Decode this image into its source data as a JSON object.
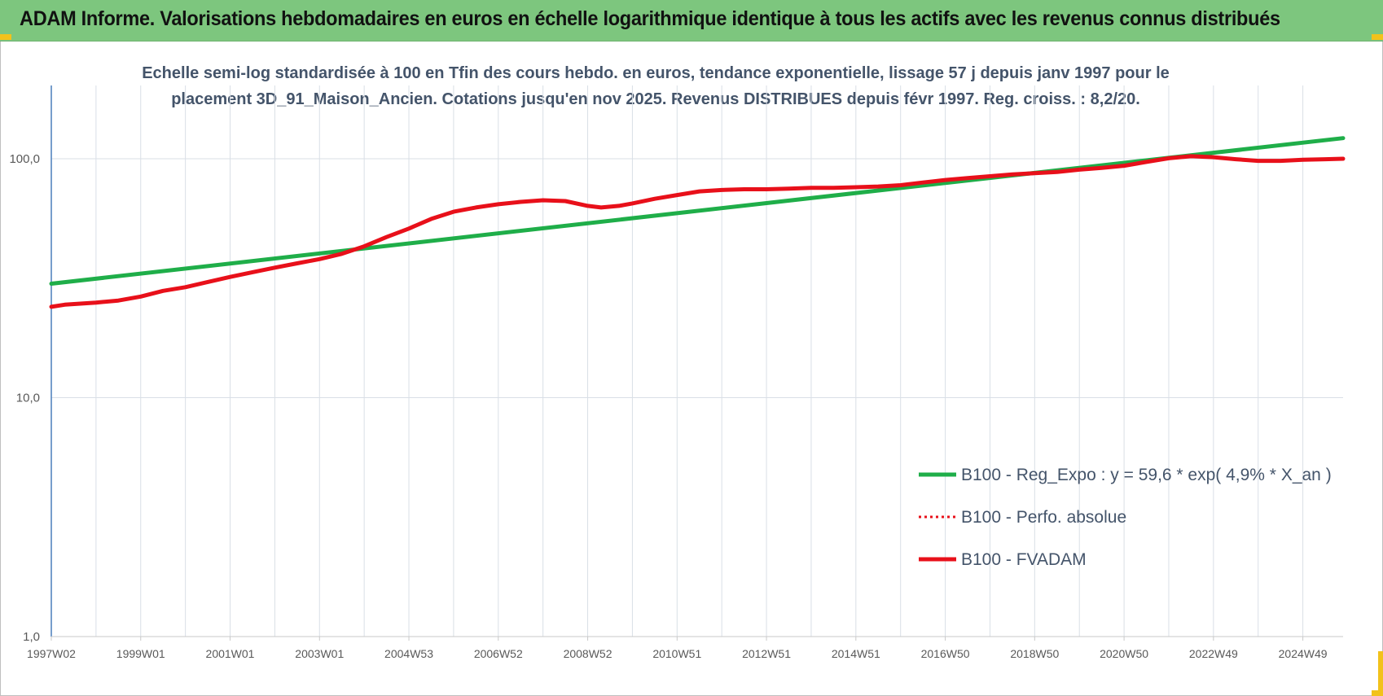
{
  "title": "ADAM Informe. Valorisations hebdomadaires en euros en échelle logarithmique identique à tous les actifs avec les revenus connus distribués",
  "subtitle_line1": "Echelle semi-log standardisée à 100 en Tfin des cours hebdo. en euros, tendance exponentielle, lissage 57 j depuis janv 1997 pour le",
  "subtitle_line2": "placement 3D_91_Maison_Ancien. Cotations jusqu'en nov 2025. Revenus DISTRIBUES depuis févr 1997. Reg. croiss. : 8,2/20.",
  "colors": {
    "banner": "#7dc67e",
    "regression": "#1fae49",
    "fvadam": "#e8101a",
    "perfo": "#e8101a",
    "axis": "#4a7ebb",
    "grid": "#d9dfe6",
    "accent": "#f2c21b"
  },
  "chart_data": {
    "type": "line",
    "yscale": "log",
    "ylim": [
      1,
      200
    ],
    "xlim": [
      1997.0,
      2025.9
    ],
    "y_ticks": [
      {
        "value": 1,
        "label": "1,0"
      },
      {
        "value": 10,
        "label": "10,0"
      },
      {
        "value": 100,
        "label": "100,0"
      }
    ],
    "x_ticks": [
      {
        "x": 1997.0,
        "label": "1997W02"
      },
      {
        "x": 1999.0,
        "label": "1999W01"
      },
      {
        "x": 2001.0,
        "label": "2001W01"
      },
      {
        "x": 2003.0,
        "label": "2003W01"
      },
      {
        "x": 2005.0,
        "label": "2004W53"
      },
      {
        "x": 2007.0,
        "label": "2006W52"
      },
      {
        "x": 2009.0,
        "label": "2008W52"
      },
      {
        "x": 2011.0,
        "label": "2010W51"
      },
      {
        "x": 2013.0,
        "label": "2012W51"
      },
      {
        "x": 2015.0,
        "label": "2014W51"
      },
      {
        "x": 2017.0,
        "label": "2016W50"
      },
      {
        "x": 2019.0,
        "label": "2018W50"
      },
      {
        "x": 2021.0,
        "label": "2020W50"
      },
      {
        "x": 2023.0,
        "label": "2022W49"
      },
      {
        "x": 2025.0,
        "label": "2024W49"
      }
    ],
    "legend_position": "bottom-right",
    "series": [
      {
        "name": "B100 - Reg_Expo : y = 59,6 * exp( 4,9% *  X_an )",
        "style": "solid",
        "x": [
          1997.0,
          2025.9
        ],
        "y": [
          30.0,
          122.0
        ]
      },
      {
        "name": "B100 - Perfo. absolue",
        "style": "dotted",
        "x": [],
        "y": []
      },
      {
        "name": "B100 - FVADAM",
        "style": "solid",
        "x": [
          1997.0,
          1997.3,
          1998.0,
          1998.5,
          1999.0,
          1999.5,
          2000.0,
          2000.5,
          2001.0,
          2001.5,
          2002.0,
          2002.5,
          2003.0,
          2003.5,
          2004.0,
          2004.5,
          2005.0,
          2005.5,
          2006.0,
          2006.5,
          2007.0,
          2007.5,
          2008.0,
          2008.5,
          2009.0,
          2009.3,
          2009.7,
          2010.0,
          2010.5,
          2011.0,
          2011.5,
          2012.0,
          2012.5,
          2013.0,
          2013.5,
          2014.0,
          2014.5,
          2015.0,
          2015.5,
          2016.0,
          2016.5,
          2017.0,
          2017.5,
          2018.0,
          2018.5,
          2019.0,
          2019.5,
          2020.0,
          2020.5,
          2021.0,
          2021.5,
          2022.0,
          2022.5,
          2023.0,
          2023.5,
          2024.0,
          2024.5,
          2025.0,
          2025.5,
          2025.9
        ],
        "y": [
          24.0,
          24.5,
          25.0,
          25.5,
          26.5,
          28.0,
          29.0,
          30.5,
          32.0,
          33.5,
          35.0,
          36.5,
          38.0,
          40.0,
          43.0,
          47.0,
          51.0,
          56.0,
          60.0,
          62.5,
          64.5,
          66.0,
          67.0,
          66.5,
          63.5,
          62.5,
          63.5,
          65.0,
          68.0,
          70.5,
          73.0,
          74.0,
          74.5,
          74.5,
          75.0,
          75.5,
          75.5,
          76.0,
          76.5,
          77.5,
          79.5,
          81.5,
          83.0,
          84.5,
          86.0,
          87.0,
          88.0,
          90.0,
          91.5,
          93.5,
          97.0,
          100.5,
          102.5,
          101.5,
          99.5,
          98.0,
          98.0,
          99.0,
          99.5,
          100.0
        ]
      }
    ]
  }
}
